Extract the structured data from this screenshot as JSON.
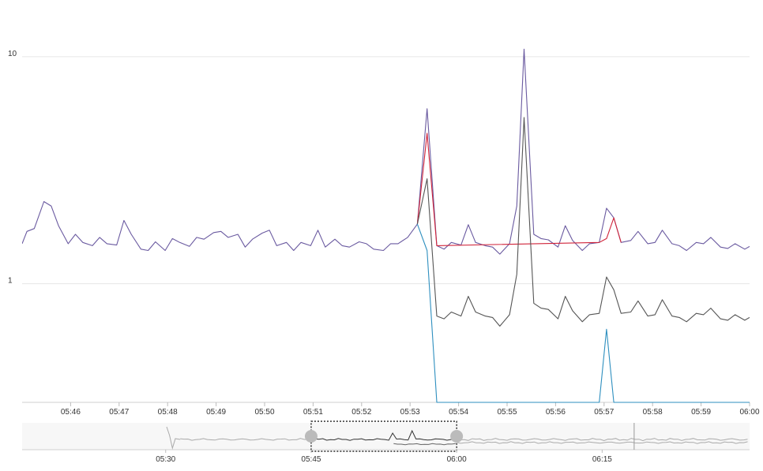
{
  "chart_data": [
    {
      "type": "line",
      "y_scale": "log",
      "ylim": [
        0.3,
        11
      ],
      "y_ticks": [
        {
          "value": 10,
          "label": "10"
        },
        {
          "value": 1,
          "label": "1"
        }
      ],
      "x_ticks": [
        {
          "value": 46,
          "label": "05:46"
        },
        {
          "value": 47,
          "label": "05:47"
        },
        {
          "value": 48,
          "label": "05:48"
        },
        {
          "value": 49,
          "label": "05:49"
        },
        {
          "value": 50,
          "label": "05:50"
        },
        {
          "value": 51,
          "label": "05:51"
        },
        {
          "value": 52,
          "label": "05:52"
        },
        {
          "value": 53,
          "label": "05:53"
        },
        {
          "value": 54,
          "label": "05:54"
        },
        {
          "value": 55,
          "label": "05:55"
        },
        {
          "value": 56,
          "label": "05:56"
        },
        {
          "value": 57,
          "label": "05:57"
        },
        {
          "value": 58,
          "label": "05:58"
        },
        {
          "value": 59,
          "label": "05:59"
        },
        {
          "value": 60,
          "label": "06:00"
        }
      ],
      "xlim": [
        45.0,
        60.0
      ],
      "x_minutes_after": "05:00",
      "series": [
        {
          "color": "#6a5aa0",
          "points": [
            [
              45.0,
              1.5
            ],
            [
              45.1,
              1.7
            ],
            [
              45.25,
              1.75
            ],
            [
              45.45,
              2.3
            ],
            [
              45.6,
              2.2
            ],
            [
              45.75,
              1.8
            ],
            [
              45.95,
              1.5
            ],
            [
              46.1,
              1.65
            ],
            [
              46.25,
              1.52
            ],
            [
              46.45,
              1.47
            ],
            [
              46.6,
              1.6
            ],
            [
              46.75,
              1.5
            ],
            [
              46.95,
              1.48
            ],
            [
              47.1,
              1.9
            ],
            [
              47.25,
              1.65
            ],
            [
              47.45,
              1.42
            ],
            [
              47.6,
              1.4
            ],
            [
              47.75,
              1.53
            ],
            [
              47.95,
              1.4
            ],
            [
              48.1,
              1.58
            ],
            [
              48.25,
              1.52
            ],
            [
              48.45,
              1.46
            ],
            [
              48.6,
              1.6
            ],
            [
              48.75,
              1.57
            ],
            [
              48.95,
              1.68
            ],
            [
              49.1,
              1.7
            ],
            [
              49.25,
              1.6
            ],
            [
              49.45,
              1.65
            ],
            [
              49.6,
              1.45
            ],
            [
              49.75,
              1.57
            ],
            [
              49.95,
              1.67
            ],
            [
              50.1,
              1.72
            ],
            [
              50.25,
              1.47
            ],
            [
              50.45,
              1.52
            ],
            [
              50.6,
              1.4
            ],
            [
              50.75,
              1.52
            ],
            [
              50.95,
              1.47
            ],
            [
              51.1,
              1.72
            ],
            [
              51.25,
              1.45
            ],
            [
              51.45,
              1.57
            ],
            [
              51.6,
              1.47
            ],
            [
              51.75,
              1.45
            ],
            [
              51.95,
              1.53
            ],
            [
              52.1,
              1.5
            ],
            [
              52.25,
              1.42
            ],
            [
              52.45,
              1.4
            ],
            [
              52.6,
              1.5
            ],
            [
              52.75,
              1.5
            ],
            [
              52.95,
              1.6
            ],
            [
              53.15,
              1.83
            ],
            [
              53.35,
              5.9
            ],
            [
              53.55,
              1.47
            ],
            [
              53.7,
              1.42
            ],
            [
              53.85,
              1.52
            ],
            [
              54.05,
              1.48
            ],
            [
              54.2,
              1.82
            ],
            [
              54.35,
              1.52
            ],
            [
              54.55,
              1.47
            ],
            [
              54.7,
              1.45
            ],
            [
              54.85,
              1.35
            ],
            [
              55.05,
              1.5
            ],
            [
              55.2,
              2.2
            ],
            [
              55.35,
              10.8
            ],
            [
              55.55,
              1.65
            ],
            [
              55.7,
              1.58
            ],
            [
              55.85,
              1.56
            ],
            [
              56.05,
              1.45
            ],
            [
              56.2,
              1.8
            ],
            [
              56.35,
              1.55
            ],
            [
              56.55,
              1.4
            ],
            [
              56.7,
              1.5
            ],
            [
              56.9,
              1.52
            ],
            [
              57.05,
              2.15
            ],
            [
              57.2,
              1.95
            ],
            [
              57.35,
              1.52
            ],
            [
              57.55,
              1.55
            ],
            [
              57.7,
              1.7
            ],
            [
              57.9,
              1.5
            ],
            [
              58.05,
              1.52
            ],
            [
              58.2,
              1.72
            ],
            [
              58.4,
              1.5
            ],
            [
              58.55,
              1.47
            ],
            [
              58.7,
              1.4
            ],
            [
              58.9,
              1.52
            ],
            [
              59.05,
              1.5
            ],
            [
              59.2,
              1.6
            ],
            [
              59.4,
              1.45
            ],
            [
              59.55,
              1.43
            ],
            [
              59.7,
              1.5
            ],
            [
              59.9,
              1.42
            ],
            [
              60.05,
              1.48
            ],
            [
              60.2,
              1.52
            ]
          ]
        },
        {
          "color": "#d0243a",
          "points": [
            [
              53.15,
              1.83
            ],
            [
              53.35,
              4.6
            ],
            [
              53.55,
              1.47
            ],
            [
              56.9,
              1.52
            ],
            [
              57.05,
              1.58
            ],
            [
              57.2,
              1.95
            ],
            [
              57.35,
              1.52
            ]
          ]
        },
        {
          "color": "#555555",
          "points": [
            [
              53.15,
              1.83
            ],
            [
              53.35,
              2.9
            ],
            [
              53.55,
              0.72
            ],
            [
              53.7,
              0.7
            ],
            [
              53.85,
              0.75
            ],
            [
              54.05,
              0.72
            ],
            [
              54.2,
              0.88
            ],
            [
              54.35,
              0.75
            ],
            [
              54.55,
              0.72
            ],
            [
              54.7,
              0.71
            ],
            [
              54.85,
              0.65
            ],
            [
              55.05,
              0.73
            ],
            [
              55.2,
              1.1
            ],
            [
              55.35,
              5.4
            ],
            [
              55.55,
              0.82
            ],
            [
              55.7,
              0.78
            ],
            [
              55.85,
              0.77
            ],
            [
              56.05,
              0.7
            ],
            [
              56.2,
              0.88
            ],
            [
              56.35,
              0.76
            ],
            [
              56.55,
              0.68
            ],
            [
              56.7,
              0.73
            ],
            [
              56.9,
              0.74
            ],
            [
              57.05,
              1.07
            ],
            [
              57.2,
              0.94
            ],
            [
              57.35,
              0.74
            ],
            [
              57.55,
              0.75
            ],
            [
              57.7,
              0.84
            ],
            [
              57.9,
              0.72
            ],
            [
              58.05,
              0.73
            ],
            [
              58.2,
              0.85
            ],
            [
              58.4,
              0.72
            ],
            [
              58.55,
              0.71
            ],
            [
              58.7,
              0.68
            ],
            [
              58.9,
              0.74
            ],
            [
              59.05,
              0.73
            ],
            [
              59.2,
              0.78
            ],
            [
              59.4,
              0.7
            ],
            [
              59.55,
              0.69
            ],
            [
              59.7,
              0.73
            ],
            [
              59.9,
              0.69
            ],
            [
              60.05,
              0.72
            ],
            [
              60.2,
              0.74
            ]
          ]
        },
        {
          "color": "#2e8fbf",
          "points": [
            [
              53.15,
              1.83
            ],
            [
              53.35,
              1.4
            ],
            [
              53.55,
              0.3
            ],
            [
              56.9,
              0.3
            ],
            [
              57.05,
              0.63
            ],
            [
              57.2,
              0.3
            ],
            [
              60.2,
              0.3
            ]
          ]
        }
      ]
    },
    {
      "type": "area",
      "role": "range-navigator",
      "x_ticks": [
        {
          "value": 30,
          "label": "05:30"
        },
        {
          "value": 45,
          "label": "05:45"
        },
        {
          "value": 60,
          "label": "06:00"
        },
        {
          "value": 75,
          "label": "06:15"
        }
      ],
      "xlim": [
        15.2,
        90.2
      ],
      "x_minutes_after": "05:00",
      "selection": [
        45,
        60
      ],
      "marker": 78.3,
      "colors": {
        "line": "#aaaaaa",
        "line_selected": "#333333",
        "handle": "#bbbbbb"
      }
    }
  ]
}
